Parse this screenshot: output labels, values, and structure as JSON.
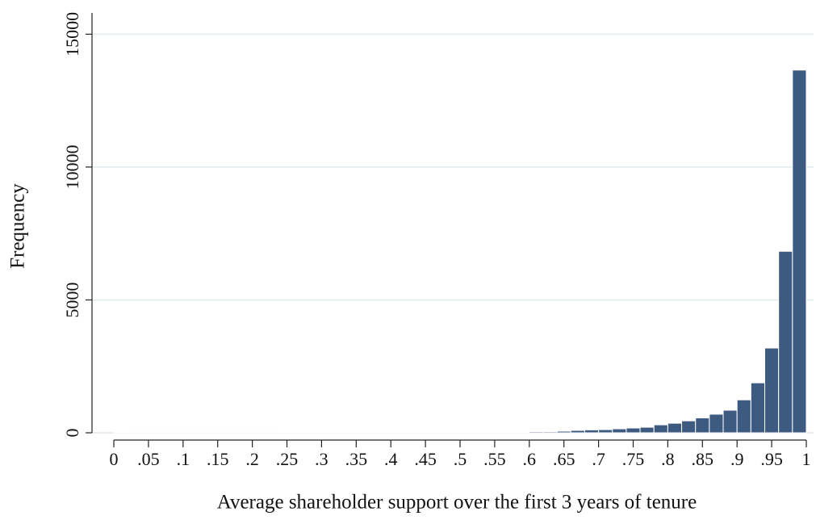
{
  "chart_data": {
    "type": "histogram",
    "xlabel": "Average shareholder support over the first 3 years of tenure",
    "ylabel": "Frequency",
    "bins": [
      0,
      0.02,
      0.04,
      0.06,
      0.08,
      0.1,
      0.12,
      0.14,
      0.16,
      0.18,
      0.2,
      0.22,
      0.24,
      0.26,
      0.28,
      0.3,
      0.32,
      0.34,
      0.36,
      0.38,
      0.4,
      0.42,
      0.44,
      0.46,
      0.48,
      0.5,
      0.52,
      0.54,
      0.56,
      0.58,
      0.6,
      0.62,
      0.64,
      0.66,
      0.68,
      0.7,
      0.72,
      0.74,
      0.76,
      0.78,
      0.8,
      0.82,
      0.84,
      0.86,
      0.88,
      0.9,
      0.92,
      0.94,
      0.96,
      0.98,
      1
    ],
    "values": [
      30,
      10,
      10,
      10,
      10,
      10,
      10,
      10,
      10,
      10,
      10,
      10,
      15,
      15,
      15,
      15,
      20,
      20,
      20,
      20,
      20,
      20,
      25,
      25,
      25,
      25,
      30,
      30,
      30,
      30,
      40,
      40,
      60,
      90,
      110,
      120,
      150,
      180,
      210,
      300,
      360,
      450,
      560,
      700,
      850,
      1240,
      1880,
      3190,
      6830,
      13650
    ],
    "color": "#3d5a80",
    "xlim": [
      -0.0315,
      1.0105
    ],
    "ylim": [
      0,
      15800
    ],
    "xticks": [
      0,
      {
        "value": 0.05,
        "label": ".05"
      },
      {
        "value": 0.1,
        "label": ".1"
      },
      {
        "value": 0.15,
        "label": ".15"
      },
      {
        "value": 0.2,
        "label": ".2"
      },
      {
        "value": 0.25,
        "label": ".25"
      },
      {
        "value": 0.3,
        "label": ".3"
      },
      {
        "value": 0.35,
        "label": ".35"
      },
      {
        "value": 0.4,
        "label": ".4"
      },
      {
        "value": 0.45,
        "label": ".45"
      },
      {
        "value": 0.5,
        "label": ".5"
      },
      {
        "value": 0.55,
        "label": ".55"
      },
      {
        "value": 0.6,
        "label": ".6"
      },
      {
        "value": 0.65,
        "label": ".65"
      },
      {
        "value": 0.7,
        "label": ".7"
      },
      {
        "value": 0.75,
        "label": ".75"
      },
      {
        "value": 0.8,
        "label": ".8"
      },
      {
        "value": 0.85,
        "label": ".85"
      },
      {
        "value": 0.9,
        "label": ".9"
      },
      {
        "value": 0.95,
        "label": ".95"
      },
      1
    ],
    "yticks": [
      0,
      5000,
      10000,
      15000
    ],
    "grid": true
  }
}
